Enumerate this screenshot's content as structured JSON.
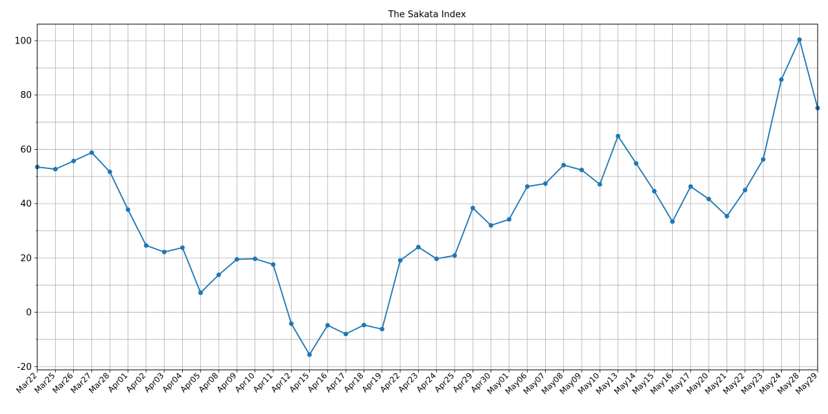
{
  "chart_data": {
    "type": "line",
    "title": "The Sakata Index",
    "xlabel": "",
    "ylabel": "",
    "categories": [
      "Mar22",
      "Mar25",
      "Mar26",
      "Mar27",
      "Mar28",
      "Apr01",
      "Apr02",
      "Apr03",
      "Apr04",
      "Apr05",
      "Apr08",
      "Apr09",
      "Apr10",
      "Apr11",
      "Apr12",
      "Apr15",
      "Apr16",
      "Apr17",
      "Apr18",
      "Apr19",
      "Apr22",
      "Apr23",
      "Apr24",
      "Apr25",
      "Apr29",
      "Apr30",
      "May01",
      "May06",
      "May07",
      "May08",
      "May09",
      "May10",
      "May13",
      "May14",
      "May15",
      "May16",
      "May17",
      "May20",
      "May21",
      "May22",
      "May23",
      "May24",
      "May28",
      "May29"
    ],
    "values": [
      53.5,
      52.7,
      55.7,
      58.8,
      51.7,
      37.8,
      24.6,
      22.2,
      23.8,
      7.2,
      13.8,
      19.5,
      19.7,
      17.6,
      -4.2,
      -15.6,
      -4.8,
      -8.0,
      -4.7,
      -6.2,
      19.1,
      24.0,
      19.7,
      20.9,
      38.4,
      32.0,
      34.2,
      46.3,
      47.4,
      54.2,
      52.4,
      47.1,
      64.9,
      54.8,
      44.6,
      33.4,
      46.3,
      41.7,
      35.4,
      45.0,
      56.3,
      85.7,
      100.4,
      75.2
    ],
    "ylim": [
      -21.2,
      106.1
    ],
    "yticks": [
      -20,
      0,
      20,
      40,
      60,
      80,
      100
    ],
    "grid": true,
    "color": "#1f77b4"
  }
}
